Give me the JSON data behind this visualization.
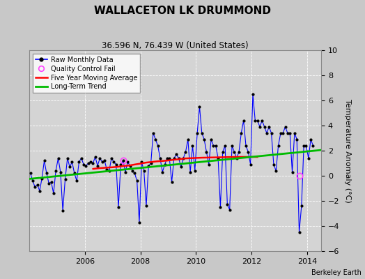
{
  "title": "WALLACETON LK DRUMMOND",
  "subtitle": "36.596 N, 76.439 W (United States)",
  "ylabel": "Temperature Anomaly (°C)",
  "attribution": "Berkeley Earth",
  "ylim": [
    -6,
    10
  ],
  "yticks": [
    -6,
    -4,
    -2,
    0,
    2,
    4,
    6,
    8,
    10
  ],
  "xlim": [
    2004.0,
    2014.5
  ],
  "xticks": [
    2006,
    2008,
    2010,
    2012,
    2014
  ],
  "fig_bg_color": "#c8c8c8",
  "plot_bg_color": "#d4d4d4",
  "raw_color": "#0000ff",
  "moving_avg_color": "#ff0000",
  "trend_color": "#00bb00",
  "qc_fail_color": "#ff44ff",
  "raw_data": {
    "times": [
      2004.042,
      2004.125,
      2004.208,
      2004.292,
      2004.375,
      2004.458,
      2004.542,
      2004.625,
      2004.708,
      2004.792,
      2004.875,
      2004.958,
      2005.042,
      2005.125,
      2005.208,
      2005.292,
      2005.375,
      2005.458,
      2005.542,
      2005.625,
      2005.708,
      2005.792,
      2005.875,
      2005.958,
      2006.042,
      2006.125,
      2006.208,
      2006.292,
      2006.375,
      2006.458,
      2006.542,
      2006.625,
      2006.708,
      2006.792,
      2006.875,
      2006.958,
      2007.042,
      2007.125,
      2007.208,
      2007.292,
      2007.375,
      2007.458,
      2007.542,
      2007.625,
      2007.708,
      2007.792,
      2007.875,
      2007.958,
      2008.042,
      2008.125,
      2008.208,
      2008.292,
      2008.375,
      2008.458,
      2008.542,
      2008.625,
      2008.708,
      2008.792,
      2008.875,
      2008.958,
      2009.042,
      2009.125,
      2009.208,
      2009.292,
      2009.375,
      2009.458,
      2009.542,
      2009.625,
      2009.708,
      2009.792,
      2009.875,
      2009.958,
      2010.042,
      2010.125,
      2010.208,
      2010.292,
      2010.375,
      2010.458,
      2010.542,
      2010.625,
      2010.708,
      2010.792,
      2010.875,
      2010.958,
      2011.042,
      2011.125,
      2011.208,
      2011.292,
      2011.375,
      2011.458,
      2011.542,
      2011.625,
      2011.708,
      2011.792,
      2011.875,
      2011.958,
      2012.042,
      2012.125,
      2012.208,
      2012.292,
      2012.375,
      2012.458,
      2012.542,
      2012.625,
      2012.708,
      2012.792,
      2012.875,
      2012.958,
      2013.042,
      2013.125,
      2013.208,
      2013.292,
      2013.375,
      2013.458,
      2013.542,
      2013.625,
      2013.708,
      2013.792,
      2013.875,
      2013.958,
      2014.042,
      2014.125,
      2014.208
    ],
    "values": [
      0.2,
      -0.4,
      -0.9,
      -0.7,
      -1.2,
      -0.2,
      1.2,
      0.2,
      -0.6,
      -0.5,
      -1.4,
      0.4,
      1.4,
      0.3,
      -2.8,
      -0.3,
      1.4,
      0.7,
      1.1,
      0.2,
      -0.4,
      1.1,
      1.4,
      0.9,
      0.8,
      1.0,
      1.1,
      1.0,
      1.5,
      0.8,
      1.4,
      1.1,
      1.2,
      0.5,
      0.4,
      1.4,
      1.1,
      0.9,
      -2.5,
      0.9,
      1.2,
      0.3,
      1.1,
      0.8,
      0.4,
      0.2,
      -0.4,
      -3.7,
      1.1,
      0.4,
      -2.4,
      0.8,
      1.0,
      3.4,
      2.9,
      2.4,
      1.4,
      0.3,
      0.9,
      1.4,
      1.4,
      -0.5,
      1.4,
      1.7,
      1.4,
      0.7,
      1.4,
      1.9,
      2.9,
      0.3,
      2.4,
      0.4,
      3.4,
      5.5,
      3.4,
      2.9,
      1.9,
      0.9,
      2.9,
      2.4,
      2.4,
      1.4,
      -2.5,
      1.9,
      2.4,
      -2.3,
      -2.7,
      2.4,
      1.9,
      1.4,
      1.9,
      3.4,
      4.4,
      2.4,
      1.9,
      0.9,
      6.5,
      4.4,
      4.4,
      3.9,
      4.4,
      3.9,
      3.4,
      3.9,
      3.4,
      0.9,
      0.4,
      2.4,
      3.4,
      3.4,
      3.9,
      3.4,
      3.4,
      0.3,
      3.4,
      2.9,
      -4.5,
      -2.4,
      2.4,
      2.4,
      1.4,
      2.9,
      2.4
    ]
  },
  "moving_avg": {
    "times": [
      2006.3,
      2006.5,
      2006.8,
      2007.0,
      2007.2,
      2007.4,
      2007.6,
      2007.8,
      2008.0,
      2008.2,
      2008.4,
      2008.6,
      2008.8,
      2009.0,
      2009.2,
      2009.4,
      2009.6,
      2009.8,
      2010.0,
      2010.2,
      2010.4,
      2010.6,
      2010.8,
      2011.0,
      2011.2,
      2011.4,
      2011.6,
      2011.8,
      2012.0,
      2012.2
    ],
    "values": [
      0.55,
      0.6,
      0.65,
      0.68,
      0.72,
      0.78,
      0.82,
      0.9,
      0.97,
      1.05,
      1.1,
      1.15,
      1.18,
      1.22,
      1.28,
      1.32,
      1.38,
      1.4,
      1.42,
      1.44,
      1.45,
      1.46,
      1.47,
      1.48,
      1.49,
      1.5,
      1.5,
      1.5,
      1.5,
      1.5
    ]
  },
  "trend": {
    "times": [
      2004.0,
      2014.5
    ],
    "values": [
      -0.25,
      2.05
    ]
  },
  "qc_fail_points": {
    "times": [
      2007.375,
      2013.708
    ],
    "values": [
      1.2,
      0.0
    ]
  },
  "title_fontsize": 11,
  "subtitle_fontsize": 8.5,
  "tick_fontsize": 8,
  "ylabel_fontsize": 8,
  "legend_fontsize": 7,
  "attribution_fontsize": 7
}
